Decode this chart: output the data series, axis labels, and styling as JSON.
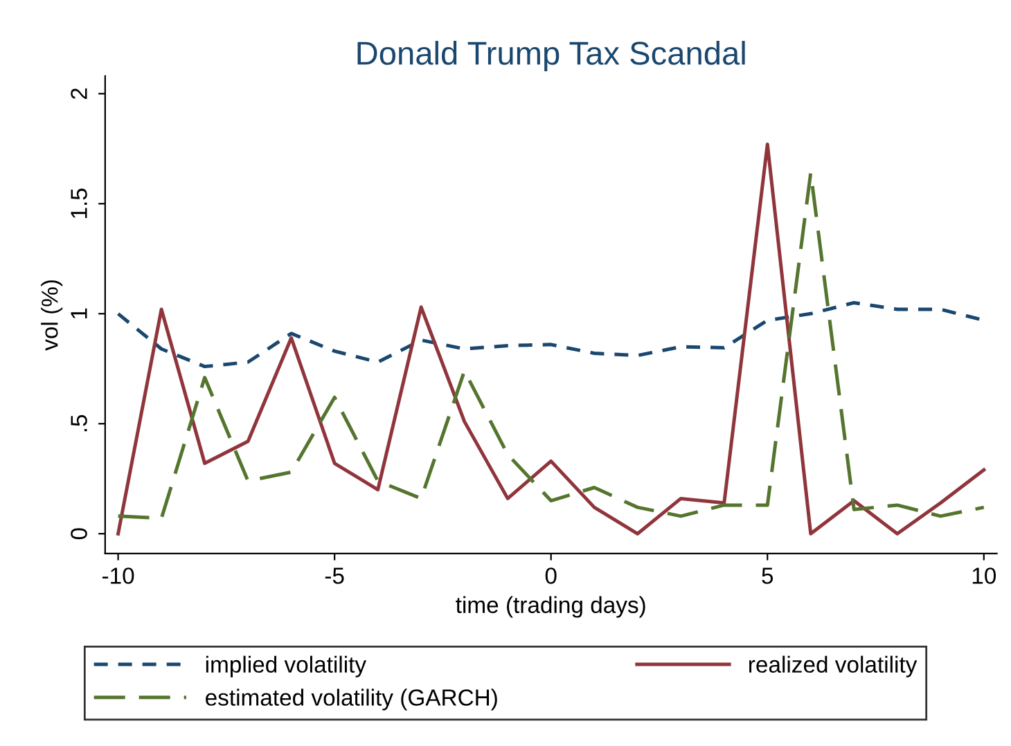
{
  "chart_data": {
    "type": "line",
    "title": "Donald Trump Tax Scandal",
    "xlabel": "time (trading days)",
    "ylabel": "vol (%)",
    "x": [
      -10,
      -9,
      -8,
      -7,
      -6,
      -5,
      -4,
      -3,
      -2,
      -1,
      0,
      1,
      2,
      3,
      4,
      5,
      6,
      7,
      8,
      9,
      10
    ],
    "series": [
      {
        "name": "implied volatility",
        "color": "#1a476f",
        "line_style": "dashed",
        "values": [
          1.0,
          0.84,
          0.76,
          0.78,
          0.91,
          0.83,
          0.78,
          0.88,
          0.84,
          0.855,
          0.86,
          0.82,
          0.81,
          0.85,
          0.845,
          0.97,
          1.0,
          1.05,
          1.02,
          1.02,
          0.97
        ]
      },
      {
        "name": "realized volatility",
        "color": "#90353b",
        "line_style": "solid",
        "values": [
          0.0,
          1.02,
          0.32,
          0.42,
          0.89,
          0.32,
          0.2,
          1.03,
          0.51,
          0.16,
          0.33,
          0.12,
          0.0,
          0.16,
          0.14,
          1.77,
          0.0,
          0.15,
          0.0,
          0.14,
          0.29
        ]
      },
      {
        "name": "estimated volatility (GARCH)",
        "color": "#55752f",
        "line_style": "longdash",
        "values": [
          0.08,
          0.07,
          0.71,
          0.24,
          0.28,
          0.62,
          0.24,
          0.16,
          0.74,
          0.36,
          0.15,
          0.21,
          0.12,
          0.08,
          0.13,
          0.13,
          1.64,
          0.11,
          0.13,
          0.08,
          0.12
        ]
      }
    ],
    "xlim": [
      -10.3,
      10.3
    ],
    "xticks": [
      -10,
      -5,
      0,
      5,
      10
    ],
    "ylim": [
      -0.09,
      2.08
    ],
    "yticks": [
      0,
      {
        "value": 0.5,
        "label": ".5"
      },
      1,
      {
        "value": 1.5,
        "label": "1.5"
      },
      2
    ],
    "grid": false,
    "legend": "bottom",
    "marker": "none"
  }
}
